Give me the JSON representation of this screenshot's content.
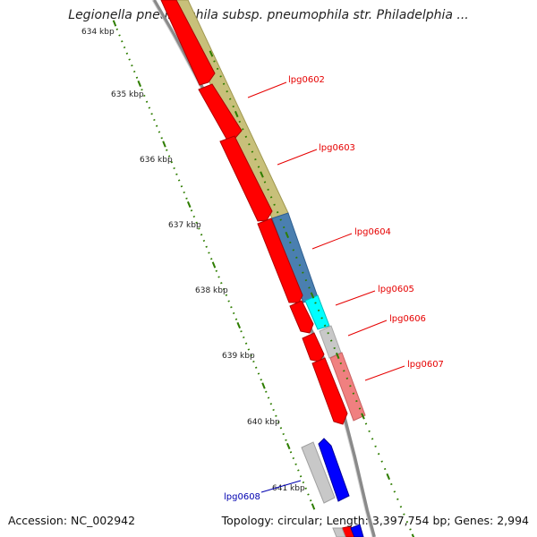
{
  "header": {
    "title": "Legionella pneumophila subsp. pneumophila str. Philadelphia ..."
  },
  "footer": {
    "accession": "Accession: NC_002942",
    "summary": "Topology: circular; Length: 3,397,754 bp; Genes: 2,994"
  },
  "ruler": {
    "ticks": [
      "634 kbp",
      "635 kbp",
      "636 kbp",
      "637 kbp",
      "638 kbp",
      "639 kbp",
      "640 kbp",
      "641 kbp"
    ],
    "dot_color": "#2e7d00"
  },
  "genes": [
    {
      "label": "lpg0602",
      "color": "#e60000"
    },
    {
      "label": "lpg0603",
      "color": "#e60000"
    },
    {
      "label": "lpg0604",
      "color": "#e60000"
    },
    {
      "label": "lpg0605",
      "color": "#e60000"
    },
    {
      "label": "lpg0606",
      "color": "#e60000"
    },
    {
      "label": "lpg0607",
      "color": "#e60000"
    },
    {
      "label": "lpg0608",
      "color": "#0000b0"
    }
  ],
  "colors": {
    "strand": "#8a8a8a",
    "gene_forward": "#ff0000",
    "gene_reverse": "#0000ff",
    "cog_olive": "#c8c07a",
    "cog_steel": "#4a7fb0",
    "cog_cyan": "#00ffff",
    "cog_grey": "#c8c8c8",
    "cog_pink": "#f08080"
  }
}
